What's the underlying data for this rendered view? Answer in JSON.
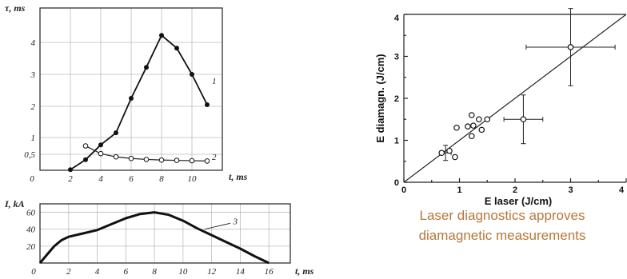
{
  "chart_data": [
    {
      "type": "scatter",
      "xlabel": "t, ms",
      "ylabel": "τ, ms",
      "x_ticks": [
        "2",
        "4",
        "6",
        "8",
        "10"
      ],
      "y_ticks": [
        "0",
        "0,5",
        "1",
        "2",
        "3",
        "4"
      ],
      "xlim": [
        0,
        12
      ],
      "ylim": [
        0,
        4.6
      ],
      "grid": true,
      "series": [
        {
          "name": "1",
          "x": [
            2,
            3,
            4,
            5,
            6,
            7,
            8,
            9,
            10,
            11
          ],
          "y": [
            0.02,
            0.33,
            0.78,
            1.15,
            2.25,
            3.22,
            4.22,
            3.82,
            3.0,
            2.05
          ]
        },
        {
          "name": "2",
          "x": [
            3,
            4,
            5,
            6,
            7,
            8,
            9,
            10,
            11
          ],
          "y": [
            0.75,
            0.52,
            0.42,
            0.37,
            0.34,
            0.32,
            0.31,
            0.3,
            0.29
          ]
        }
      ]
    },
    {
      "type": "line",
      "xlabel": "t, ms",
      "ylabel": "I, kA",
      "x_ticks": [
        "0",
        "2",
        "4",
        "6",
        "8",
        "10",
        "12",
        "14",
        "16"
      ],
      "y_ticks": [
        "20",
        "40",
        "60"
      ],
      "xlim": [
        0,
        17.5
      ],
      "ylim": [
        0,
        70
      ],
      "grid": true,
      "series": [
        {
          "name": "3",
          "x": [
            0,
            0.5,
            1,
            1.5,
            2,
            3,
            4,
            5,
            6,
            7,
            8,
            9,
            10,
            11,
            12,
            13,
            14,
            15,
            16
          ],
          "y": [
            0,
            10,
            20,
            27,
            31,
            35,
            39,
            46,
            53,
            58,
            60,
            57,
            50,
            41,
            33,
            25,
            17,
            8,
            0
          ]
        }
      ]
    },
    {
      "type": "scatter",
      "xlabel": "E  laser  (J/cm)",
      "ylabel": "E diamagn. (J/cm)",
      "x_ticks": [
        "0",
        "1",
        "2",
        "3",
        "4"
      ],
      "y_ticks": [
        "0",
        "1",
        "2",
        "3",
        "4"
      ],
      "xlim": [
        0,
        4
      ],
      "ylim": [
        0,
        4
      ],
      "grid": false,
      "points": [
        {
          "x": 0.68,
          "y": 0.7
        },
        {
          "x": 0.82,
          "y": 0.75
        },
        {
          "x": 0.92,
          "y": 0.6
        },
        {
          "x": 0.95,
          "y": 1.3
        },
        {
          "x": 1.15,
          "y": 1.33
        },
        {
          "x": 1.22,
          "y": 1.6
        },
        {
          "x": 1.22,
          "y": 1.1
        },
        {
          "x": 1.25,
          "y": 1.35
        },
        {
          "x": 1.35,
          "y": 1.5
        },
        {
          "x": 1.4,
          "y": 1.25
        },
        {
          "x": 1.5,
          "y": 1.5
        },
        {
          "x": 2.15,
          "y": 1.5
        },
        {
          "x": 3.0,
          "y": 3.22
        }
      ],
      "error_bars": [
        {
          "x": 0.75,
          "y": 0.7,
          "dx": 0.1,
          "dy": 0.18
        },
        {
          "x": 2.15,
          "y": 1.5,
          "dx": 0.35,
          "dy": 0.58
        },
        {
          "x": 3.0,
          "y": 3.22,
          "dx": 0.8,
          "dy": 0.92
        }
      ],
      "fit_line": {
        "x": [
          0,
          4.05
        ],
        "y": [
          0,
          4.05
        ]
      }
    }
  ],
  "caption": {
    "line1": "Laser diagnostics approves",
    "line2": "diamagnetic measurements"
  }
}
